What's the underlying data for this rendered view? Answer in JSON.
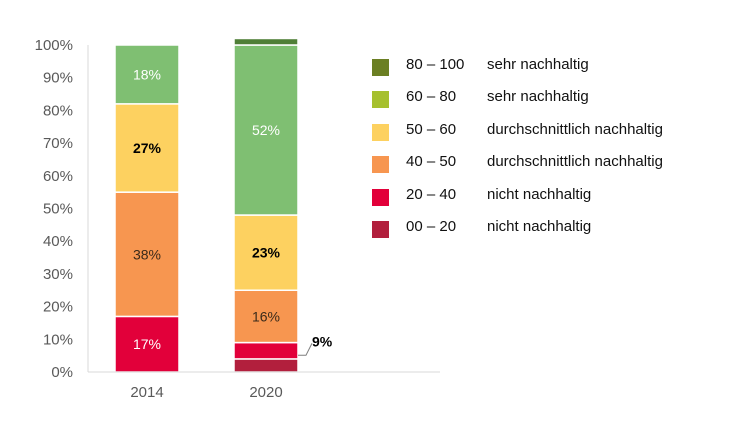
{
  "chart_data": {
    "type": "bar",
    "stacked": true,
    "categories": [
      "2014",
      "2020"
    ],
    "series": [
      {
        "name": "00 – 20 nicht nachhaltig",
        "range": "00 – 20",
        "label": "nicht nachhaltig",
        "color": "#b21f3d",
        "values": [
          0,
          4
        ],
        "labels": [
          "",
          ""
        ]
      },
      {
        "name": "20 – 40 nicht nachhaltig",
        "range": "20 – 40",
        "label": "nicht nachhaltig",
        "color": "#e2003a",
        "values": [
          17,
          5
        ],
        "labels": [
          "17%",
          ""
        ]
      },
      {
        "name": "40 – 50 durchschnittlich nachhaltig",
        "range": "40 – 50",
        "label": "durchschnittlich nachhaltig",
        "color": "#f79650",
        "values": [
          38,
          16
        ],
        "labels": [
          "38%",
          "16%"
        ]
      },
      {
        "name": "50 – 60 durchschnittlich nachhaltig",
        "range": "50 – 60",
        "label": "durchschnittlich nachhaltig",
        "color": "#fdd160",
        "values": [
          27,
          23
        ],
        "labels": [
          "27%",
          "23%"
        ]
      },
      {
        "name": "60 – 80 sehr nachhaltig",
        "range": "60 – 80",
        "label": "sehr nachhaltig",
        "color": "#7fbf72",
        "values": [
          18,
          52
        ],
        "labels": [
          "18%",
          "52%"
        ]
      },
      {
        "name": "80 – 100 sehr nachhaltig",
        "range": "80 – 100",
        "label": "sehr nachhaltig",
        "color": "#4f7f37",
        "values": [
          0,
          2
        ],
        "labels": [
          "",
          ""
        ]
      }
    ],
    "legend_colors": [
      "#6b7f23",
      "#a6c02e",
      "#fdd160",
      "#f79650",
      "#e2003a",
      "#b21f3d"
    ],
    "callout": {
      "category": "2020",
      "text": "9%"
    },
    "yticks": [
      "0%",
      "10%",
      "20%",
      "30%",
      "40%",
      "50%",
      "60%",
      "70%",
      "80%",
      "90%",
      "100%"
    ],
    "ylim": [
      0,
      100
    ],
    "title": "",
    "xlabel": "",
    "ylabel": "",
    "legend_position": "right",
    "grid": false
  }
}
